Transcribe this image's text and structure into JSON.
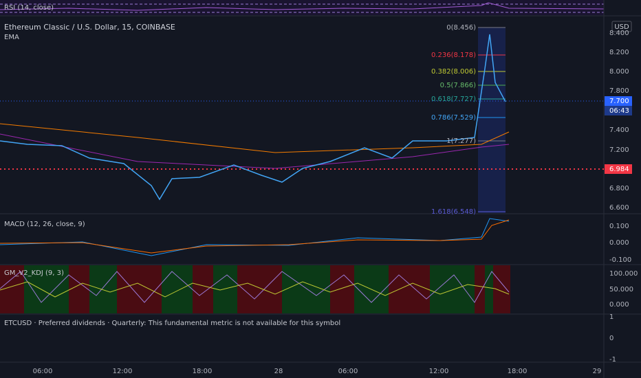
{
  "rsi": {
    "label": "RSI (14, close)"
  },
  "main": {
    "title": "Ethereum Classic / U.S. Dollar, 15, COINBASE",
    "study": "EMA"
  },
  "price_axis": {
    "currency": "USD",
    "labels": [
      "8.400",
      "8.200",
      "8.000",
      "7.800",
      "7.400",
      "7.200",
      "6.800",
      "6.600"
    ],
    "last_price": "7.700",
    "countdown": "06:43",
    "line_price": "6.984"
  },
  "fib": {
    "levels": [
      "0(8.456)",
      "0.236(8.178)",
      "0.382(8.006)",
      "0.5(7.866)",
      "0.618(7.727)",
      "0.786(7.529)",
      "1(7.277)",
      "1.618(6.548)"
    ]
  },
  "macd": {
    "label": "MACD (12, 26, close, 9)",
    "axis": [
      "0.100",
      "0.000",
      "-0.100"
    ]
  },
  "kdj": {
    "label": "GM_V2_KDJ (9, 3)",
    "axis": [
      "100.000",
      "50.000",
      "0.000"
    ]
  },
  "fundamental": {
    "label": "ETCUSD · Preferred dividends · Quarterly: This fundamental metric is not available for this symbol",
    "axis": [
      "1",
      "0",
      "-1"
    ]
  },
  "time_axis": [
    "06:00",
    "12:00",
    "18:00",
    "28",
    "06:00",
    "12:00",
    "18:00",
    "29"
  ]
}
